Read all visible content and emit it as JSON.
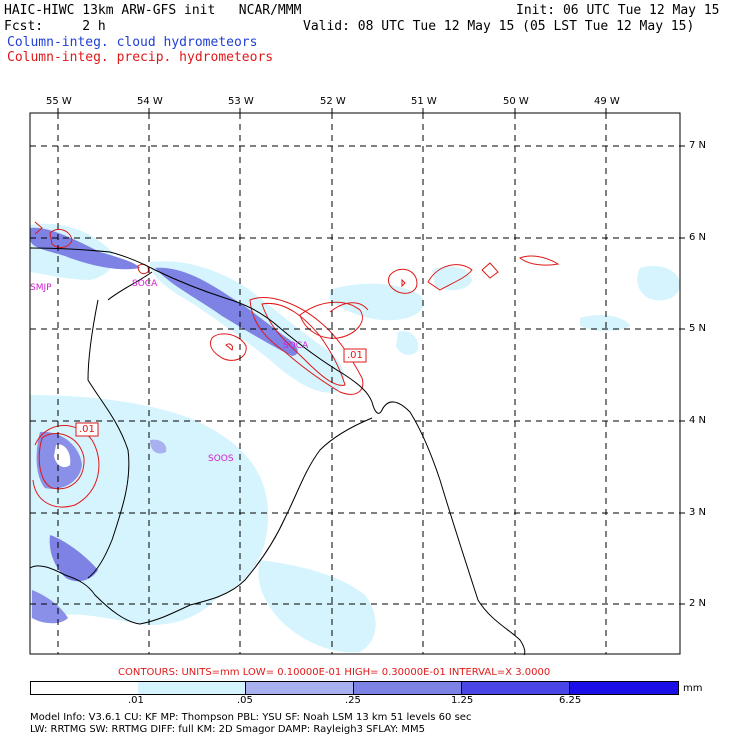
{
  "header": {
    "line1_left": "HAIC-HIWC 13km ARW-GFS init   NCAR/MMM",
    "line1_right": "Init: 06 UTC Tue 12 May 15",
    "line2_left": "Fcst:     2 h",
    "line2_right": "Valid: 08 UTC Tue 12 May 15 (05 LST Tue 12 May 15)",
    "legend_cloud": "Column-integ. cloud hydrometeors",
    "legend_precip": "Column-integ. precip. hydrometeors"
  },
  "colors": {
    "cloud_legend": "#1f3fd6",
    "precip_legend": "#e01818",
    "fill_light": "#d6f4fd",
    "fill_mid": "#a8b0ef",
    "fill_strong": "#6e74e6",
    "fill_deep": "#4b46e8",
    "fill_max": "#1a0fe6",
    "contour": "#e01818",
    "station": "#d020d0"
  },
  "map": {
    "lon_labels": [
      "55 W",
      "54 W",
      "53 W",
      "52 W",
      "51 W",
      "50 W",
      "49 W"
    ],
    "lat_labels": [
      "7 N",
      "6 N",
      "5 N",
      "4 N",
      "3 N",
      "2 N"
    ],
    "stations": [
      "SMJP",
      "SOCA",
      "SOCA",
      "SOOS"
    ],
    "contour_labels": [
      ".01",
      ".01"
    ]
  },
  "contours_text": "CONTOURS:  UNITS=mm  LOW= 0.10000E-01  HIGH= 0.30000E-01  INTERVAL=X  3.0000",
  "colorbar": {
    "units": "mm",
    "ticks": [
      ".01",
      ".05",
      ".25",
      "1.25",
      "6.25"
    ]
  },
  "model_info": {
    "line1": "Model Info: V3.6.1    CU: KF      MP: Thompson    PBL: YSU      SF: Noah LSM     13 km   51 levels  60 sec",
    "line2": "         LW: RRTMG   SW: RRTMG  DIFF: full    KM: 2D Smagor DAMP: Rayleigh3  SFLAY: MM5"
  }
}
